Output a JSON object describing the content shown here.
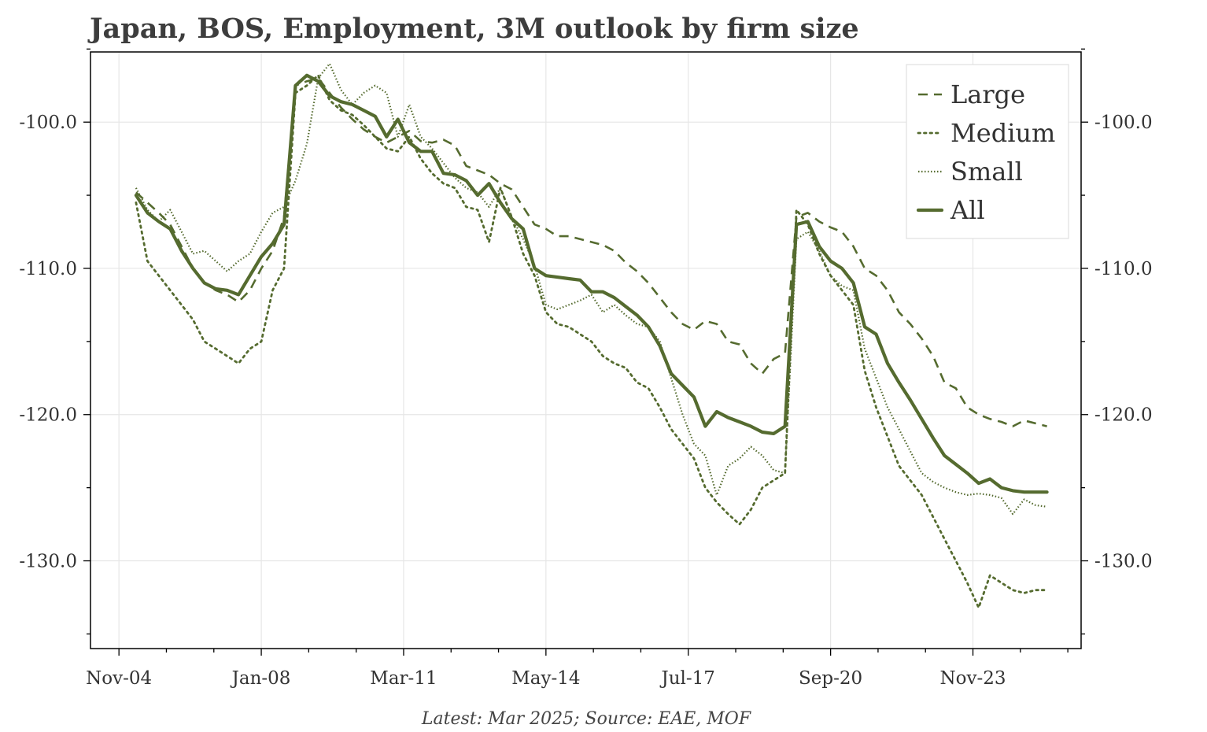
{
  "chart_data": {
    "type": "line",
    "title": "Japan, BOS, Employment, 3M outlook by firm size",
    "caption": "Latest: Mar 2025; Source: EAE, MOF",
    "xlabel": "",
    "ylabel": "",
    "x_tick_labels": [
      "Nov-04",
      "Jan-08",
      "Mar-11",
      "May-14",
      "Jul-17",
      "Sep-20",
      "Nov-23"
    ],
    "x_tick_values": [
      2004.875,
      2008.0,
      2011.125,
      2014.25,
      2017.375,
      2020.5,
      2023.625
    ],
    "xlim": [
      2004.25,
      2026.0
    ],
    "y_tick_labels": [
      "-100.0",
      "-110.0",
      "-120.0",
      "-130.0"
    ],
    "y_tick_values": [
      -100,
      -110,
      -120,
      -130
    ],
    "ylim": [
      -136,
      -95.2
    ],
    "grid": true,
    "legend_position": "top-right",
    "colors": {
      "series": "#556b2f",
      "grid": "#e6e6e6",
      "axis": "#000000",
      "text": "#333333"
    },
    "series": [
      {
        "name": "Large",
        "style": "dashed",
        "x": [
          2005.25,
          2005.5,
          2005.75,
          2006.0,
          2006.25,
          2006.5,
          2006.75,
          2007.0,
          2007.25,
          2007.5,
          2007.75,
          2008.0,
          2008.25,
          2008.5,
          2008.75,
          2009.0,
          2009.25,
          2009.5,
          2009.75,
          2010.0,
          2010.25,
          2010.5,
          2010.75,
          2011.0,
          2011.25,
          2011.5,
          2011.75,
          2012.0,
          2012.25,
          2012.5,
          2012.75,
          2013.0,
          2013.25,
          2013.5,
          2013.75,
          2014.0,
          2014.25,
          2014.5,
          2014.75,
          2015.0,
          2015.25,
          2015.5,
          2015.75,
          2016.0,
          2016.25,
          2016.5,
          2016.75,
          2017.0,
          2017.25,
          2017.5,
          2017.75,
          2018.0,
          2018.25,
          2018.5,
          2018.75,
          2019.0,
          2019.25,
          2019.5,
          2019.75,
          2020.0,
          2020.25,
          2020.5,
          2020.75,
          2021.0,
          2021.25,
          2021.5,
          2021.75,
          2022.0,
          2022.25,
          2022.5,
          2022.75,
          2023.0,
          2023.25,
          2023.5,
          2023.75,
          2024.0,
          2024.25,
          2024.5,
          2024.75,
          2025.0,
          2025.25
        ],
        "y": [
          -104.8,
          -105.5,
          -106.2,
          -107.0,
          -108.5,
          -110.0,
          -111.0,
          -111.5,
          -111.8,
          -112.3,
          -111.5,
          -110.0,
          -108.8,
          -106.5,
          -97.5,
          -97.2,
          -97.0,
          -98.0,
          -99.0,
          -99.8,
          -100.5,
          -101.0,
          -101.4,
          -101.0,
          -100.6,
          -101.3,
          -101.4,
          -101.2,
          -101.6,
          -103.0,
          -103.3,
          -103.6,
          -104.2,
          -104.6,
          -105.8,
          -107.0,
          -107.3,
          -107.8,
          -107.8,
          -108.0,
          -108.2,
          -108.4,
          -108.8,
          -109.6,
          -110.2,
          -111.0,
          -112.0,
          -113.0,
          -113.8,
          -114.2,
          -113.6,
          -113.8,
          -115.0,
          -115.2,
          -116.5,
          -117.2,
          -116.2,
          -115.8,
          -106.5,
          -106.2,
          -106.8,
          -107.2,
          -107.5,
          -108.5,
          -110.0,
          -110.5,
          -111.5,
          -113.0,
          -113.8,
          -114.8,
          -116.0,
          -117.8,
          -118.2,
          -119.5,
          -120.0,
          -120.3,
          -120.5,
          -120.8,
          -120.4,
          -120.6,
          -120.8
        ]
      },
      {
        "name": "Medium",
        "style": "dotted",
        "x": [
          2005.25,
          2005.5,
          2005.75,
          2006.0,
          2006.25,
          2006.5,
          2006.75,
          2007.0,
          2007.25,
          2007.5,
          2007.75,
          2008.0,
          2008.25,
          2008.5,
          2008.75,
          2009.0,
          2009.25,
          2009.5,
          2009.75,
          2010.0,
          2010.25,
          2010.5,
          2010.75,
          2011.0,
          2011.25,
          2011.5,
          2011.75,
          2012.0,
          2012.25,
          2012.5,
          2012.75,
          2013.0,
          2013.25,
          2013.5,
          2013.75,
          2014.0,
          2014.25,
          2014.5,
          2014.75,
          2015.0,
          2015.25,
          2015.5,
          2015.75,
          2016.0,
          2016.25,
          2016.5,
          2016.75,
          2017.0,
          2017.25,
          2017.5,
          2017.75,
          2018.0,
          2018.25,
          2018.5,
          2018.75,
          2019.0,
          2019.25,
          2019.5,
          2019.75,
          2020.0,
          2020.25,
          2020.5,
          2020.75,
          2021.0,
          2021.25,
          2021.5,
          2021.75,
          2022.0,
          2022.25,
          2022.5,
          2022.75,
          2023.0,
          2023.25,
          2023.5,
          2023.75,
          2024.0,
          2024.25,
          2024.5,
          2024.75,
          2025.0,
          2025.25
        ],
        "y": [
          -105.5,
          -109.5,
          -110.5,
          -111.5,
          -112.5,
          -113.5,
          -115.0,
          -115.5,
          -116.0,
          -116.5,
          -115.5,
          -115.0,
          -111.5,
          -110.0,
          -98.0,
          -97.5,
          -96.8,
          -98.5,
          -99.2,
          -99.5,
          -100.2,
          -101.0,
          -101.8,
          -102.0,
          -101.0,
          -102.5,
          -103.5,
          -104.2,
          -104.5,
          -105.8,
          -106.0,
          -108.2,
          -104.5,
          -106.5,
          -109.0,
          -110.5,
          -113.0,
          -113.8,
          -114.0,
          -114.5,
          -115.0,
          -116.0,
          -116.5,
          -116.8,
          -117.8,
          -118.2,
          -119.5,
          -121.0,
          -122.0,
          -123.0,
          -125.0,
          -126.0,
          -126.8,
          -127.5,
          -126.5,
          -125.0,
          -124.5,
          -124.0,
          -106.0,
          -107.0,
          -109.0,
          -110.5,
          -111.5,
          -112.5,
          -117.0,
          -119.5,
          -121.5,
          -123.5,
          -124.5,
          -125.5,
          -127.0,
          -128.5,
          -130.0,
          -131.5,
          -133.2,
          -131.0,
          -131.5,
          -132.0,
          -132.2,
          -132.0,
          -132.0
        ]
      },
      {
        "name": "Small",
        "style": "dotted-fine",
        "x": [
          2005.25,
          2005.5,
          2005.75,
          2006.0,
          2006.25,
          2006.5,
          2006.75,
          2007.0,
          2007.25,
          2007.5,
          2007.75,
          2008.0,
          2008.25,
          2008.5,
          2008.75,
          2009.0,
          2009.25,
          2009.5,
          2009.75,
          2010.0,
          2010.25,
          2010.5,
          2010.75,
          2011.0,
          2011.25,
          2011.5,
          2011.75,
          2012.0,
          2012.25,
          2012.5,
          2012.75,
          2013.0,
          2013.25,
          2013.5,
          2013.75,
          2014.0,
          2014.25,
          2014.5,
          2014.75,
          2015.0,
          2015.25,
          2015.5,
          2015.75,
          2016.0,
          2016.25,
          2016.5,
          2016.75,
          2017.0,
          2017.25,
          2017.5,
          2017.75,
          2018.0,
          2018.25,
          2018.5,
          2018.75,
          2019.0,
          2019.25,
          2019.5,
          2019.75,
          2020.0,
          2020.25,
          2020.5,
          2020.75,
          2021.0,
          2021.25,
          2021.5,
          2021.75,
          2022.0,
          2022.25,
          2022.5,
          2022.75,
          2023.0,
          2023.25,
          2023.5,
          2023.75,
          2024.0,
          2024.25,
          2024.5,
          2024.75,
          2025.0,
          2025.25
        ],
        "y": [
          -104.5,
          -106.0,
          -106.8,
          -106.0,
          -107.5,
          -109.0,
          -108.8,
          -109.5,
          -110.2,
          -109.5,
          -109.0,
          -107.5,
          -106.2,
          -105.8,
          -104.0,
          -101.5,
          -97.0,
          -96.0,
          -97.8,
          -98.8,
          -98.0,
          -97.5,
          -98.0,
          -101.0,
          -98.8,
          -101.0,
          -101.8,
          -102.8,
          -103.8,
          -104.5,
          -104.8,
          -105.8,
          -104.5,
          -106.5,
          -108.0,
          -109.8,
          -112.5,
          -112.8,
          -112.5,
          -112.2,
          -111.8,
          -113.0,
          -112.5,
          -113.2,
          -113.8,
          -114.0,
          -115.0,
          -117.5,
          -120.0,
          -122.0,
          -122.8,
          -125.5,
          -123.5,
          -123.0,
          -122.2,
          -122.8,
          -123.8,
          -124.0,
          -108.0,
          -107.5,
          -108.8,
          -110.5,
          -111.2,
          -111.5,
          -115.5,
          -117.5,
          -119.5,
          -121.0,
          -122.5,
          -124.0,
          -124.6,
          -125.0,
          -125.3,
          -125.5,
          -125.4,
          -125.5,
          -125.7,
          -126.8,
          -125.8,
          -126.2,
          -126.3
        ]
      },
      {
        "name": "All",
        "style": "solid",
        "x": [
          2005.25,
          2005.5,
          2005.75,
          2006.0,
          2006.25,
          2006.5,
          2006.75,
          2007.0,
          2007.25,
          2007.5,
          2007.75,
          2008.0,
          2008.25,
          2008.5,
          2008.75,
          2009.0,
          2009.25,
          2009.5,
          2009.75,
          2010.0,
          2010.25,
          2010.5,
          2010.75,
          2011.0,
          2011.25,
          2011.5,
          2011.75,
          2012.0,
          2012.25,
          2012.5,
          2012.75,
          2013.0,
          2013.25,
          2013.5,
          2013.75,
          2014.0,
          2014.25,
          2014.5,
          2014.75,
          2015.0,
          2015.25,
          2015.5,
          2015.75,
          2016.0,
          2016.25,
          2016.5,
          2016.75,
          2017.0,
          2017.25,
          2017.5,
          2017.75,
          2018.0,
          2018.25,
          2018.5,
          2018.75,
          2019.0,
          2019.25,
          2019.5,
          2019.75,
          2020.0,
          2020.25,
          2020.5,
          2020.75,
          2021.0,
          2021.25,
          2021.5,
          2021.75,
          2022.0,
          2022.25,
          2022.5,
          2022.75,
          2023.0,
          2023.25,
          2023.5,
          2023.75,
          2024.0,
          2024.25,
          2024.5,
          2024.75,
          2025.0,
          2025.25
        ],
        "y": [
          -105.0,
          -106.2,
          -106.8,
          -107.3,
          -108.8,
          -110.0,
          -111.0,
          -111.4,
          -111.5,
          -111.8,
          -110.5,
          -109.2,
          -108.3,
          -107.0,
          -97.5,
          -96.8,
          -97.2,
          -98.2,
          -98.6,
          -98.8,
          -99.2,
          -99.6,
          -101.0,
          -99.8,
          -101.4,
          -102.0,
          -102.0,
          -103.5,
          -103.6,
          -104.0,
          -105.0,
          -104.2,
          -105.5,
          -106.6,
          -107.3,
          -110.0,
          -110.5,
          -110.6,
          -110.7,
          -110.8,
          -111.6,
          -111.6,
          -112.0,
          -112.6,
          -113.2,
          -114.0,
          -115.3,
          -117.2,
          -118.0,
          -118.8,
          -120.8,
          -119.8,
          -120.2,
          -120.5,
          -120.8,
          -121.2,
          -121.3,
          -120.8,
          -107.0,
          -106.8,
          -108.5,
          -109.5,
          -110.0,
          -111.0,
          -114.0,
          -114.5,
          -116.5,
          -117.8,
          -119.0,
          -120.3,
          -121.6,
          -122.8,
          -123.4,
          -124.0,
          -124.7,
          -124.4,
          -125.0,
          -125.2,
          -125.3,
          -125.3,
          -125.3
        ]
      }
    ]
  }
}
